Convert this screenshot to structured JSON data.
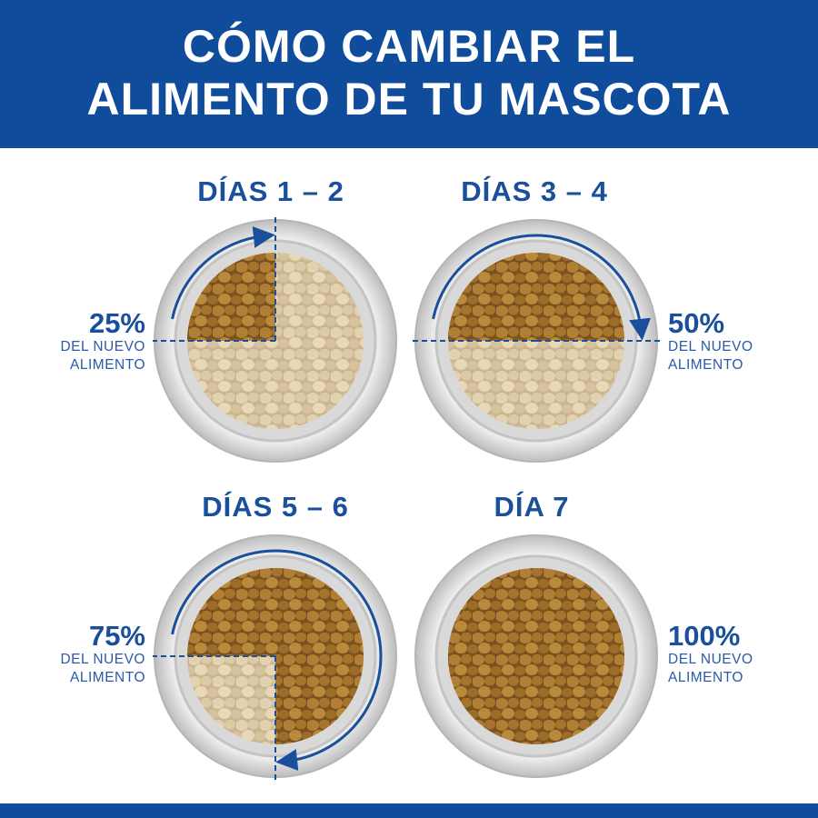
{
  "header": {
    "title_line1": "CÓMO CAMBIAR EL",
    "title_line2": "ALIMENTO DE TU MASCOTA"
  },
  "colors": {
    "brand_blue": "#0f4c9c",
    "new_food": "#a8772e",
    "old_food": "#ddcba8"
  },
  "steps": [
    {
      "title": "DÍAS 1 – 2",
      "percent": "25%",
      "line1": "DEL NUEVO",
      "line2": "ALIMENTO",
      "new_food_fraction": 0.25
    },
    {
      "title": "DÍAS 3 – 4",
      "percent": "50%",
      "line1": "DEL NUEVO",
      "line2": "ALIMENTO",
      "new_food_fraction": 0.5
    },
    {
      "title": "DÍAS 5 – 6",
      "percent": "75%",
      "line1": "DEL NUEVO",
      "line2": "ALIMENTO",
      "new_food_fraction": 0.75
    },
    {
      "title": "DÍA 7",
      "percent": "100%",
      "line1": "DEL NUEVO",
      "line2": "ALIMENTO",
      "new_food_fraction": 1
    }
  ]
}
